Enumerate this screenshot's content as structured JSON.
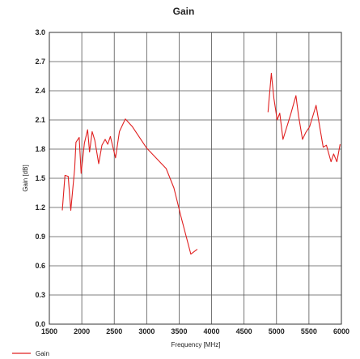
{
  "chart_data": {
    "type": "line",
    "title": "Gain",
    "xlabel": "Frequency [MHz]",
    "ylabel": "Gain [dB]",
    "xlim": [
      1500,
      6000
    ],
    "ylim": [
      0.0,
      3.0
    ],
    "x_ticks": [
      1500,
      2000,
      2500,
      3000,
      3500,
      4000,
      4500,
      5000,
      5500,
      6000
    ],
    "y_ticks": [
      "0.0",
      "0.3",
      "0.6",
      "0.9",
      "1.2",
      "1.5",
      "1.8",
      "2.1",
      "2.4",
      "2.7",
      "3.0"
    ],
    "grid": true,
    "legend": "bottom-left",
    "series": [
      {
        "name": "Gain",
        "color": "#e02020",
        "segments": [
          [
            [
              1700,
              1.17
            ],
            [
              1740,
              1.53
            ],
            [
              1790,
              1.52
            ],
            [
              1830,
              1.17
            ],
            [
              1890,
              1.6
            ],
            [
              1910,
              1.87
            ],
            [
              1960,
              1.92
            ],
            [
              1990,
              1.55
            ],
            [
              2040,
              1.86
            ],
            [
              2090,
              2.0
            ],
            [
              2120,
              1.77
            ],
            [
              2160,
              1.98
            ],
            [
              2200,
              1.89
            ],
            [
              2260,
              1.65
            ],
            [
              2310,
              1.84
            ],
            [
              2360,
              1.9
            ],
            [
              2400,
              1.85
            ],
            [
              2440,
              1.93
            ],
            [
              2520,
              1.71
            ],
            [
              2580,
              1.98
            ],
            [
              2670,
              2.11
            ],
            [
              2780,
              2.03
            ],
            [
              3000,
              1.81
            ],
            [
              3300,
              1.6
            ],
            [
              3420,
              1.4
            ],
            [
              3530,
              1.1
            ],
            [
              3680,
              0.72
            ],
            [
              3780,
              0.77
            ]
          ],
          [
            [
              4870,
              2.18
            ],
            [
              4920,
              2.58
            ],
            [
              4960,
              2.32
            ],
            [
              5010,
              2.1
            ],
            [
              5050,
              2.17
            ],
            [
              5100,
              1.9
            ],
            [
              5220,
              2.16
            ],
            [
              5300,
              2.35
            ],
            [
              5340,
              2.14
            ],
            [
              5400,
              1.9
            ],
            [
              5450,
              1.97
            ],
            [
              5510,
              2.03
            ],
            [
              5610,
              2.25
            ],
            [
              5720,
              1.82
            ],
            [
              5770,
              1.84
            ],
            [
              5840,
              1.67
            ],
            [
              5880,
              1.75
            ],
            [
              5930,
              1.67
            ],
            [
              5980,
              1.85
            ]
          ]
        ]
      }
    ]
  }
}
